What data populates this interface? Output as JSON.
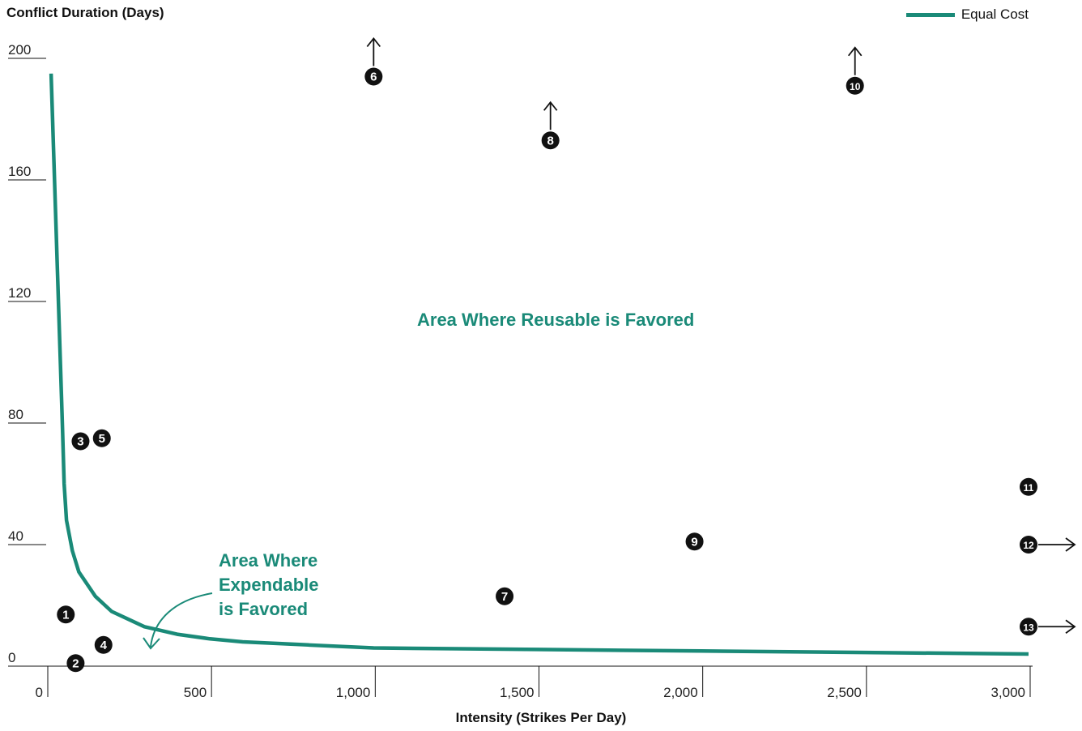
{
  "chart_data": {
    "type": "line",
    "ylabel": "Conflict Duration (Days)",
    "xlabel": "Intensity (Strikes Per Day)",
    "xlim": [
      0,
      3000
    ],
    "ylim": [
      0,
      200
    ],
    "x_ticks": [
      "0",
      "500",
      "1,000",
      "1,500",
      "2,000",
      "2,500",
      "3,000"
    ],
    "y_ticks": [
      "0",
      "40",
      "80",
      "120",
      "160",
      "200"
    ],
    "x_tick_values": [
      0,
      500,
      1000,
      1500,
      2000,
      2500,
      3000
    ],
    "y_tick_values": [
      0,
      40,
      80,
      120,
      160,
      200
    ],
    "accent_color": "#1a8a78",
    "legend": {
      "label": "Equal Cost",
      "placement": "top-right"
    },
    "series": [
      {
        "name": "Equal Cost",
        "x": [
          15,
          50,
          55,
          62,
          80,
          100,
          150,
          200,
          300,
          400,
          500,
          600,
          800,
          1000,
          1500,
          2000,
          2500,
          3000
        ],
        "y": [
          195,
          78,
          60,
          48,
          38,
          31,
          23,
          18,
          13,
          10.5,
          9,
          8,
          7,
          6,
          5.5,
          5,
          4.5,
          4
        ]
      }
    ],
    "points": [
      {
        "label": "1",
        "x": 60,
        "y": 17
      },
      {
        "label": "2",
        "x": 90,
        "y": 1
      },
      {
        "label": "3",
        "x": 105,
        "y": 74
      },
      {
        "label": "4",
        "x": 175,
        "y": 7
      },
      {
        "label": "5",
        "x": 170,
        "y": 75
      },
      {
        "label": "6",
        "x": 1000,
        "y": 194,
        "arrow": "up"
      },
      {
        "label": "7",
        "x": 1400,
        "y": 23
      },
      {
        "label": "8",
        "x": 1540,
        "y": 173,
        "arrow": "up"
      },
      {
        "label": "9",
        "x": 1980,
        "y": 41
      },
      {
        "label": "10",
        "x": 2470,
        "y": 191,
        "arrow": "up"
      },
      {
        "label": "11",
        "x": 3000,
        "y": 59
      },
      {
        "label": "12",
        "x": 3000,
        "y": 40,
        "arrow": "right"
      },
      {
        "label": "13",
        "x": 3000,
        "y": 13,
        "arrow": "right"
      }
    ],
    "annotations": {
      "reusable": "Area Where Reusable is Favored",
      "expendable_line1": "Area Where",
      "expendable_line2": "Expendable",
      "expendable_line3": "is Favored"
    }
  }
}
